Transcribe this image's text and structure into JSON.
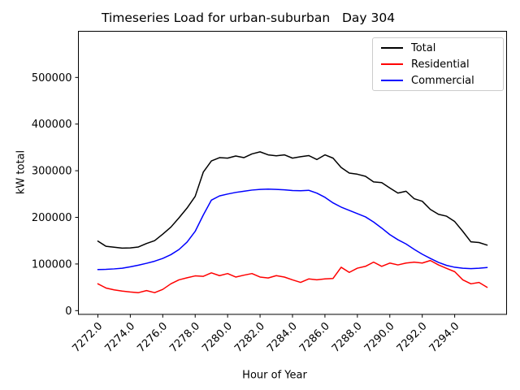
{
  "chart": {
    "title": "Timeseries Load for urban-suburban   Day 304",
    "xlabel": "Hour of Year",
    "ylabel": "kW total"
  },
  "legend": {
    "items": [
      {
        "label": "Total",
        "color": "#000000"
      },
      {
        "label": "Residential",
        "color": "#ff0000"
      },
      {
        "label": "Commercial",
        "color": "#0000ff"
      }
    ]
  },
  "chart_data": {
    "type": "line",
    "title": "Timeseries Load for urban-suburban   Day 304",
    "xlabel": "Hour of Year",
    "ylabel": "kW total",
    "grid": false,
    "legend_position": "upper right",
    "xlim": [
      7270.8,
      7297.2
    ],
    "ylim": [
      -8000,
      599000
    ],
    "xticks": [
      7272,
      7274,
      7276,
      7278,
      7280,
      7282,
      7284,
      7286,
      7288,
      7290,
      7292,
      7294
    ],
    "xtick_labels": [
      "7272.0",
      "7274.0",
      "7276.0",
      "7278.0",
      "7280.0",
      "7282.0",
      "7284.0",
      "7286.0",
      "7288.0",
      "7290.0",
      "7292.0",
      "7294.0"
    ],
    "xtick_rotation": 45,
    "yticks": [
      0,
      100000,
      200000,
      300000,
      400000,
      500000
    ],
    "ytick_labels": [
      "0",
      "100000",
      "200000",
      "300000",
      "400000",
      "500000"
    ],
    "x": [
      7272.0,
      7272.5,
      7273.0,
      7273.5,
      7274.0,
      7274.5,
      7275.0,
      7275.5,
      7276.0,
      7276.5,
      7277.0,
      7277.5,
      7278.0,
      7278.5,
      7279.0,
      7279.5,
      7280.0,
      7280.5,
      7281.0,
      7281.5,
      7282.0,
      7282.5,
      7283.0,
      7283.5,
      7284.0,
      7284.5,
      7285.0,
      7285.5,
      7286.0,
      7286.5,
      7287.0,
      7287.5,
      7288.0,
      7288.5,
      7289.0,
      7289.5,
      7290.0,
      7290.5,
      7291.0,
      7291.5,
      7292.0,
      7292.5,
      7293.0,
      7293.5,
      7294.0,
      7294.5,
      7295.0,
      7295.5,
      7296.0
    ],
    "series": [
      {
        "name": "Total",
        "color": "#000000",
        "values": [
          149000,
          138000,
          136000,
          134000,
          134500,
          136500,
          144000,
          150000,
          164000,
          179000,
          199000,
          220000,
          245000,
          297000,
          321000,
          328000,
          327000,
          331500,
          328000,
          336000,
          340500,
          334000,
          332000,
          334000,
          327000,
          330000,
          332500,
          324000,
          334000,
          327000,
          307000,
          295000,
          292500,
          288000,
          276000,
          274500,
          263000,
          252000,
          256000,
          240000,
          234500,
          217000,
          206500,
          202500,
          191000,
          170000,
          147500,
          146000,
          140500
        ]
      },
      {
        "name": "Residential",
        "color": "#ff0000",
        "values": [
          57500,
          48500,
          44500,
          42000,
          40000,
          38500,
          43000,
          38500,
          45500,
          57500,
          66000,
          70500,
          74500,
          73500,
          81000,
          75000,
          79500,
          72000,
          76000,
          79500,
          72000,
          70000,
          75000,
          72000,
          66000,
          60500,
          68000,
          66000,
          68000,
          69000,
          93000,
          82000,
          91000,
          95000,
          104000,
          95000,
          102000,
          98000,
          102000,
          104000,
          102000,
          107500,
          98000,
          90500,
          83500,
          66000,
          57500,
          60500,
          50000
        ]
      },
      {
        "name": "Commercial",
        "color": "#0000ff",
        "values": [
          88000,
          88500,
          89500,
          91000,
          94000,
          97500,
          101500,
          106000,
          112000,
          120000,
          131000,
          147000,
          170000,
          205000,
          237000,
          246000,
          250000,
          253500,
          256000,
          258500,
          260000,
          260500,
          260000,
          259000,
          257500,
          257000,
          258000,
          252000,
          243000,
          231000,
          222000,
          215000,
          208000,
          201000,
          190000,
          177000,
          163000,
          152000,
          143000,
          131500,
          121000,
          112000,
          103500,
          97000,
          93000,
          91000,
          90000,
          91000,
          92500
        ]
      }
    ]
  }
}
